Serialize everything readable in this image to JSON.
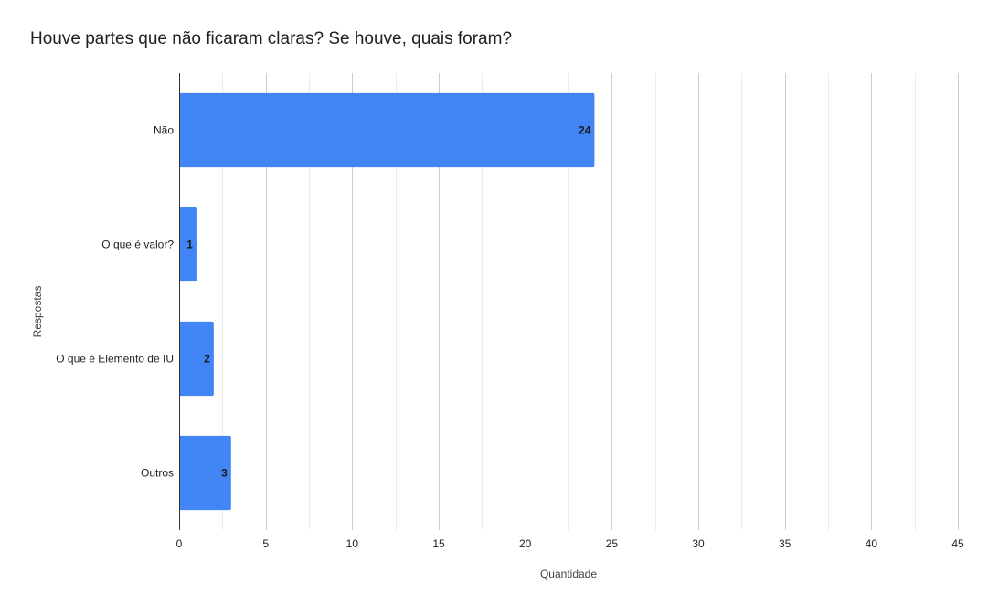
{
  "chart_data": {
    "type": "bar",
    "orientation": "horizontal",
    "title": "Houve partes que não ficaram claras? Se houve, quais foram?",
    "xlabel": "Quantidade",
    "ylabel": "Respostas",
    "categories": [
      "Não",
      "O que é valor?",
      "O que é Elemento de IU",
      "Outros"
    ],
    "values": [
      24,
      1,
      2,
      3
    ],
    "data_labels": [
      "24",
      "1",
      "2",
      "3"
    ],
    "xlim": [
      0,
      45
    ],
    "x_ticks": [
      0,
      5,
      10,
      15,
      20,
      25,
      30,
      35,
      40,
      45
    ],
    "x_tick_labels": [
      "0",
      "5",
      "10",
      "15",
      "20",
      "25",
      "30",
      "35",
      "40",
      "45"
    ],
    "grid": true,
    "legend": "none",
    "colors": {
      "bar": "#4285f4",
      "grid_major": "#cccccc",
      "grid_minor": "#ebebeb",
      "axis": "#333333",
      "text": "#222222",
      "axis_title": "#444444"
    }
  }
}
